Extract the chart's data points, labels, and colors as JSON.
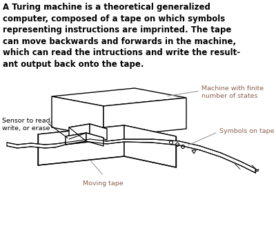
{
  "title_text": "A Turing machine is a theoretical generalized\ncomputer, composed of a tape on which symbols\nrepresenting instructions are imprinted. The tape\ncan move backwards and forwards in the machine,\nwhich can read the intructions and write the result-\nant output back onto the tape.",
  "label_sensor": "Sensor to read,\nwrite, or erase",
  "label_machine": "Machine with finite\nnumber of states",
  "label_symbols": "Symbols on tape",
  "label_tape": "Moving tape",
  "bg_color": "#ffffff",
  "line_color": "#000000",
  "label_color_black": "#000000",
  "label_color_brown": "#8B6050",
  "text_fontsize": 8.5,
  "label_fontsize": 6.8,
  "figsize": [
    4.0,
    3.5
  ],
  "dpi": 100
}
